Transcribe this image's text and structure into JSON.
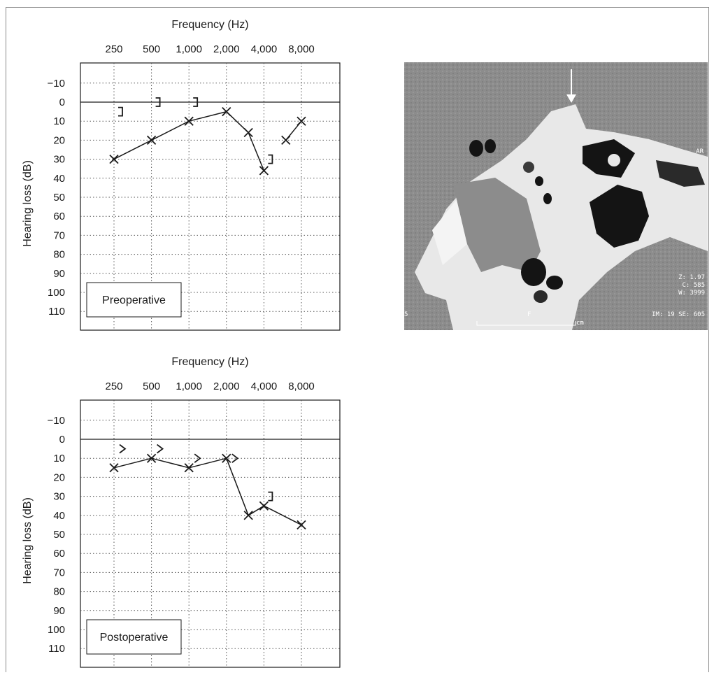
{
  "chart_data": [
    {
      "type": "line",
      "panel_label": "Preoperative",
      "xlabel": "Frequency (Hz)",
      "ylabel": "Hearing loss (dB)",
      "x_tick_labels": [
        "250",
        "500",
        "1,000",
        "2,000",
        "4,000",
        "8,000"
      ],
      "y_tick_labels": [
        "−10",
        "0",
        "10",
        "20",
        "30",
        "40",
        "50",
        "60",
        "70",
        "80",
        "90",
        "100",
        "110"
      ],
      "ylim": [
        -20,
        115
      ],
      "y_inverted": true,
      "x_scale": "log2",
      "grid": true,
      "series": [
        {
          "marker": "x",
          "connected": true,
          "points": [
            {
              "x": 250,
              "y": 30
            },
            {
              "x": 500,
              "y": 20
            },
            {
              "x": 1000,
              "y": 10
            },
            {
              "x": 2000,
              "y": 5
            },
            {
              "x": 3000,
              "y": 16
            },
            {
              "x": 4000,
              "y": 36
            },
            {
              "x": 6000,
              "y": 20
            },
            {
              "x": 8000,
              "y": 10
            }
          ],
          "line_breaks_after": [
            3000,
            4000
          ]
        },
        {
          "marker": "]",
          "connected": false,
          "points": [
            {
              "x": 250,
              "y": 5
            },
            {
              "x": 500,
              "y": 0
            },
            {
              "x": 1000,
              "y": 0
            },
            {
              "x": 4000,
              "y": 30
            }
          ]
        }
      ]
    },
    {
      "type": "line",
      "panel_label": "Postoperative",
      "xlabel": "Frequency (Hz)",
      "ylabel": "Hearing loss (dB)",
      "x_tick_labels": [
        "250",
        "500",
        "1,000",
        "2,000",
        "4,000",
        "8,000"
      ],
      "y_tick_labels": [
        "−10",
        "0",
        "10",
        "20",
        "30",
        "40",
        "50",
        "60",
        "70",
        "80",
        "90",
        "100",
        "110"
      ],
      "ylim": [
        -20,
        115
      ],
      "y_inverted": true,
      "x_scale": "log2",
      "grid": true,
      "series": [
        {
          "marker": "x",
          "connected": true,
          "points": [
            {
              "x": 250,
              "y": 15
            },
            {
              "x": 500,
              "y": 10
            },
            {
              "x": 1000,
              "y": 15
            },
            {
              "x": 2000,
              "y": 10
            },
            {
              "x": 3000,
              "y": 40
            },
            {
              "x": 4000,
              "y": 35
            },
            {
              "x": 8000,
              "y": 45
            }
          ]
        },
        {
          "marker": ">",
          "connected": false,
          "points": [
            {
              "x": 250,
              "y": 5
            },
            {
              "x": 500,
              "y": 5
            },
            {
              "x": 1000,
              "y": 10
            },
            {
              "x": 2000,
              "y": 10
            }
          ]
        },
        {
          "marker": "]",
          "connected": false,
          "points": [
            {
              "x": 4000,
              "y": 30
            }
          ]
        }
      ]
    }
  ],
  "ct_image": {
    "orientation_label": "AR",
    "zoom_text": "Z: 1.97",
    "center_text": "C: 585",
    "width_text": "W: 3999",
    "series_text": "IM: 19 SE: 605",
    "scale_letter": "F",
    "scale_unit": "cm",
    "left_edge_mark": "5"
  },
  "colors": {
    "ink": "#1a1a1a",
    "grid": "#555555",
    "ct_background": "#8c8c8c",
    "bone": "#f2f2f2",
    "air": "#141414",
    "arrow": "#ffffff"
  }
}
